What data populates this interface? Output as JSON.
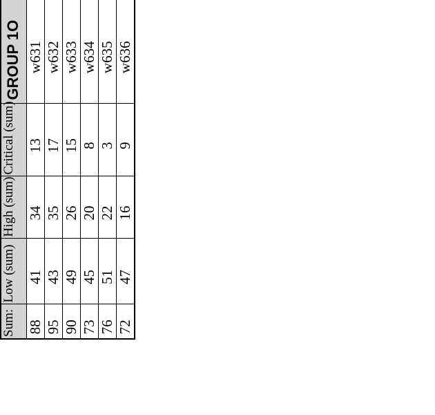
{
  "chart_data": {
    "type": "table",
    "group_label": "GROUP 1O",
    "row_ids": [
      "w631",
      "w632",
      "w633",
      "w634",
      "w635",
      "w636"
    ],
    "series": [
      {
        "name": "Critical (sum)",
        "values": [
          13,
          17,
          15,
          8,
          3,
          9
        ]
      },
      {
        "name": "High (sum)",
        "values": [
          34,
          35,
          26,
          20,
          22,
          16
        ]
      },
      {
        "name": "Low (sum)",
        "values": [
          41,
          43,
          49,
          45,
          51,
          47
        ]
      },
      {
        "name": "Sum:",
        "values": [
          88,
          95,
          90,
          73,
          76,
          72
        ]
      }
    ]
  },
  "table": {
    "columns": [
      "Sum:",
      "Low (sum)",
      "High (sum)",
      "Critical (sum)",
      "GROUP 1O"
    ],
    "rows": [
      [
        "88",
        "41",
        "34",
        "13",
        "w631"
      ],
      [
        "95",
        "43",
        "35",
        "17",
        "w632"
      ],
      [
        "90",
        "49",
        "26",
        "15",
        "w633"
      ],
      [
        "73",
        "45",
        "20",
        "8",
        "w634"
      ],
      [
        "76",
        "51",
        "22",
        "3",
        "w635"
      ],
      [
        "72",
        "47",
        "16",
        "9",
        "w636"
      ]
    ]
  },
  "colors": {
    "header_bg": "#d3d3d3",
    "border": "#000000",
    "text": "#000000",
    "page_bg": "#ffffff"
  }
}
